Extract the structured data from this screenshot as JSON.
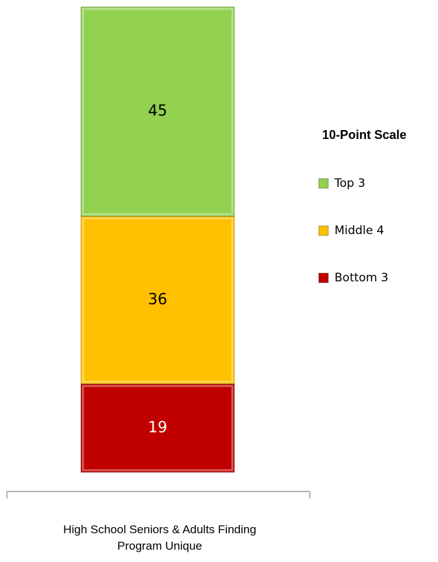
{
  "chart_data": {
    "type": "stacked_bar",
    "categories": [
      "High School Seniors & Adults Finding Program Unique"
    ],
    "series": [
      {
        "name": "Bottom 3",
        "color": "#c00000",
        "label_color": "#ffffff",
        "values": [
          19
        ]
      },
      {
        "name": "Middle 4",
        "color": "#ffc000",
        "label_color": "#000000",
        "values": [
          36
        ]
      },
      {
        "name": "Top 3",
        "color": "#92d050",
        "label_color": "#000000",
        "values": [
          45
        ]
      }
    ],
    "ylim": [
      0,
      100
    ],
    "legend_title": "10-Point Scale",
    "legend": "right"
  }
}
